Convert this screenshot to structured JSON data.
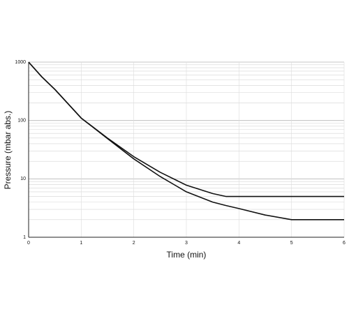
{
  "chart_data": {
    "type": "line",
    "x_label": "Time (min)",
    "y_label": "Pressure (mbar abs.)",
    "x": [
      0,
      0.25,
      0.5,
      1,
      1.5,
      2,
      2.5,
      3,
      3.5,
      3.75,
      4,
      4.5,
      5,
      5.5,
      6
    ],
    "series": [
      {
        "color": "#111111",
        "values": [
          1000,
          560,
          340,
          110,
          50,
          24,
          13,
          7.8,
          5.6,
          5,
          5,
          5,
          5,
          5,
          5
        ]
      },
      {
        "color": "#111111",
        "values": [
          1000,
          560,
          340,
          110,
          49,
          22,
          11,
          6,
          4,
          3.5,
          3.1,
          2.4,
          2,
          2,
          2
        ]
      }
    ],
    "xlim": [
      0,
      6
    ],
    "xticks": [
      0,
      1,
      2,
      3,
      4,
      5,
      6
    ],
    "ylim": [
      1,
      1000
    ],
    "yticks": [
      1,
      10,
      100,
      1000
    ],
    "log_y": true,
    "grid": true,
    "minor_grid": true
  }
}
